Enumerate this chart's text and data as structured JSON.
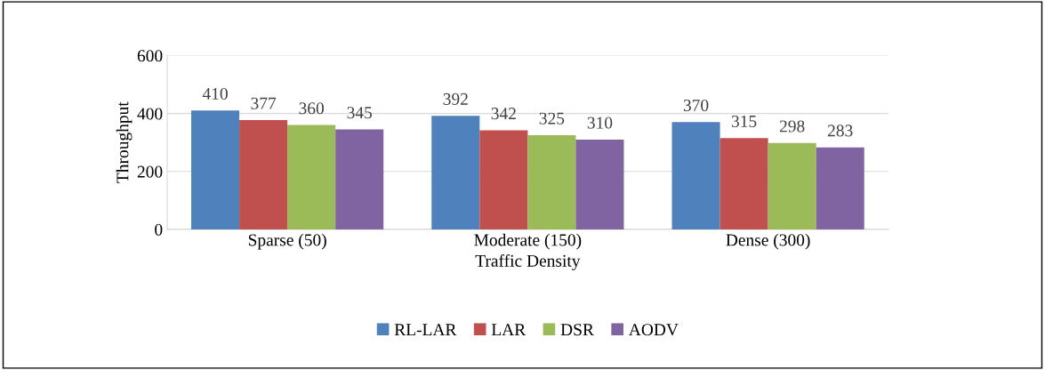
{
  "chart_data": {
    "type": "bar",
    "xlabel": "Traffic Density",
    "ylabel": "Throughput",
    "categories": [
      "Sparse (50)",
      "Moderate (150)",
      "Dense (300)"
    ],
    "series": [
      {
        "name": "RL-LAR",
        "color": "#4f81bd",
        "values": [
          410,
          392,
          370
        ]
      },
      {
        "name": "LAR",
        "color": "#c0504d",
        "values": [
          377,
          342,
          315
        ]
      },
      {
        "name": "DSR",
        "color": "#9bbb59",
        "values": [
          360,
          325,
          298
        ]
      },
      {
        "name": "AODV",
        "color": "#8064a2",
        "values": [
          345,
          310,
          283
        ]
      }
    ],
    "ylim": [
      0,
      600
    ],
    "yticks": [
      0,
      200,
      400,
      600
    ],
    "grid": "y",
    "legend": "bottom",
    "data_labels": true
  }
}
